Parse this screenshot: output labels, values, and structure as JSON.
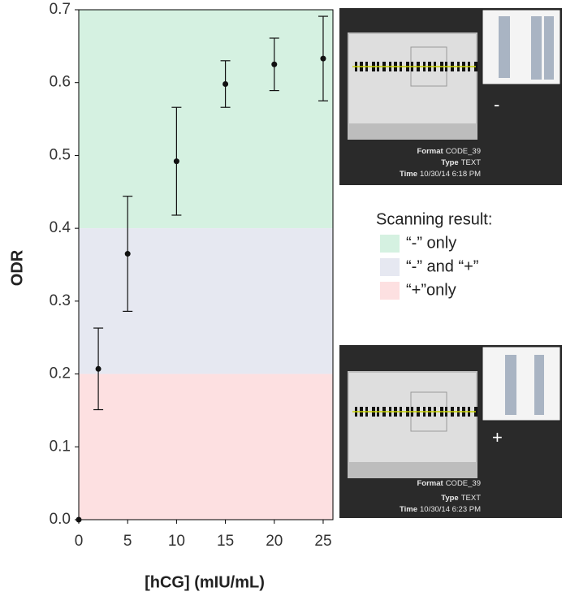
{
  "chart_data": {
    "type": "scatter",
    "x": [
      0,
      2,
      5,
      10,
      15,
      20,
      25
    ],
    "values": [
      0.0,
      0.207,
      0.365,
      0.492,
      0.598,
      0.625,
      0.633
    ],
    "errors": [
      null,
      0.056,
      0.079,
      0.074,
      0.032,
      0.036,
      0.058
    ],
    "color": "#111111",
    "xlim": [
      0,
      26
    ],
    "xticks": [
      0,
      5,
      10,
      15,
      20,
      25
    ],
    "ylim": [
      0,
      0.7
    ],
    "yticks": [
      {
        "value": 0,
        "label": "0.0"
      },
      0.1,
      0.2,
      0.3,
      0.4,
      0.5,
      0.6,
      0.7
    ],
    "xlabel": "[hCG] (mIU/mL)",
    "ylabel": "ODR",
    "legend_title": "Scanning result:",
    "regions": [
      {
        "name": "“-” only",
        "color": "#d5f1e1",
        "ylim": [
          0.4,
          0.7
        ]
      },
      {
        "name": "“-” and “+”",
        "color": "#e6e8f1",
        "ylim": [
          0.2,
          0.4
        ]
      },
      {
        "name": "“+”only",
        "color": "#fde0e1",
        "ylim": [
          0,
          0.2
        ]
      }
    ]
  },
  "insets": [
    {
      "format_label": "Format",
      "format": "CODE_39",
      "type_label": "Type",
      "type": "TEXT",
      "time_label": "Time",
      "time": "10/30/14 6:18 PM",
      "sign": "-"
    },
    {
      "format_label": "Format",
      "format": "CODE_39",
      "type_label": "Type",
      "type": "TEXT",
      "time_label": "Time",
      "time": "10/30/14 6:23 PM",
      "sign": "+"
    }
  ]
}
